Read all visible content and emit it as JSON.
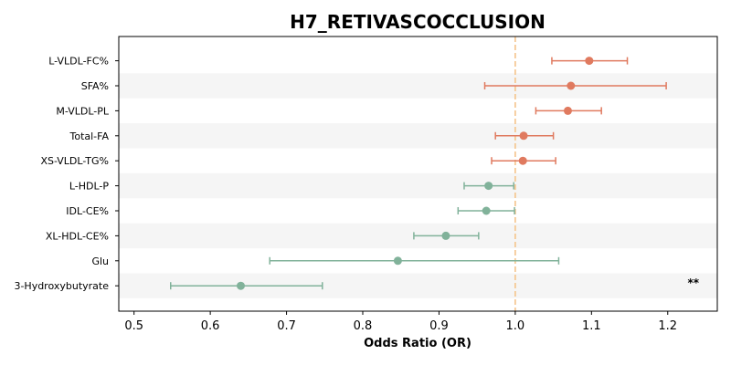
{
  "chart_data": {
    "type": "forest",
    "title": "H7_RETIVASCOCCLUSION",
    "xlabel": "Odds Ratio (OR)",
    "xlim": [
      0.48,
      1.265
    ],
    "xticks": [
      "0.5",
      "0.6",
      "0.7",
      "0.8",
      "0.9",
      "1.0",
      "1.1",
      "1.2"
    ],
    "reference_line": 1.0,
    "reference_color": "#f5c48a",
    "colors": {
      "positive": "#e07a5f",
      "negative": "#81b29a",
      "band": "#f5f5f5"
    },
    "rows": [
      {
        "label": "L-VLDL-FC%",
        "or": 1.097,
        "lo": 1.048,
        "hi": 1.147,
        "annotation": ""
      },
      {
        "label": "SFA%",
        "or": 1.073,
        "lo": 0.96,
        "hi": 1.198,
        "annotation": ""
      },
      {
        "label": "M-VLDL-PL",
        "or": 1.069,
        "lo": 1.027,
        "hi": 1.113,
        "annotation": ""
      },
      {
        "label": "Total-FA",
        "or": 1.011,
        "lo": 0.974,
        "hi": 1.05,
        "annotation": ""
      },
      {
        "label": "XS-VLDL-TG%",
        "or": 1.01,
        "lo": 0.969,
        "hi": 1.053,
        "annotation": ""
      },
      {
        "label": "L-HDL-P",
        "or": 0.965,
        "lo": 0.933,
        "hi": 0.998,
        "annotation": ""
      },
      {
        "label": "IDL-CE%",
        "or": 0.962,
        "lo": 0.925,
        "hi": 0.999,
        "annotation": ""
      },
      {
        "label": "XL-HDL-CE%",
        "or": 0.909,
        "lo": 0.867,
        "hi": 0.952,
        "annotation": ""
      },
      {
        "label": "Glu",
        "or": 0.846,
        "lo": 0.678,
        "hi": 1.057,
        "annotation": ""
      },
      {
        "label": "3-Hydroxybutyrate",
        "or": 0.64,
        "lo": 0.548,
        "hi": 0.747,
        "annotation": "**"
      }
    ]
  }
}
